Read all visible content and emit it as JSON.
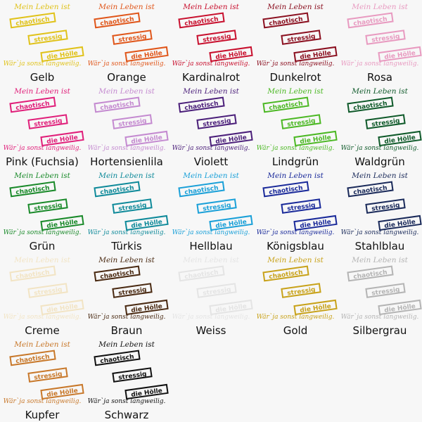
{
  "design": {
    "line1": "Mein Leben ist",
    "word1": "chaotisch",
    "word2": "stressig",
    "word3": "die Hölle",
    "tagline": "Wär`ja sonst langweilig."
  },
  "colors": [
    {
      "name": "Gelb",
      "hex": "#e0c21a"
    },
    {
      "name": "Orange",
      "hex": "#e0561a"
    },
    {
      "name": "Kardinalrot",
      "hex": "#c8102e"
    },
    {
      "name": "Dunkelrot",
      "hex": "#8b1020"
    },
    {
      "name": "Rosa",
      "hex": "#e89ac0"
    },
    {
      "name": "Pink (Fuchsia)",
      "hex": "#e01f7a"
    },
    {
      "name": "Hortensienlila",
      "hex": "#c48ad0"
    },
    {
      "name": "Violett",
      "hex": "#4b1f7a"
    },
    {
      "name": "Lindgrün",
      "hex": "#4cb824"
    },
    {
      "name": "Waldgrün",
      "hex": "#0f5a2a"
    },
    {
      "name": "Grün",
      "hex": "#1a8a2a"
    },
    {
      "name": "Türkis",
      "hex": "#0f8a9a"
    },
    {
      "name": "Hellblau",
      "hex": "#1aa0d8"
    },
    {
      "name": "Königsblau",
      "hex": "#1a2a9a"
    },
    {
      "name": "Stahlblau",
      "hex": "#1a2a5a"
    },
    {
      "name": "Creme",
      "hex": "#f2e4c4"
    },
    {
      "name": "Braun",
      "hex": "#4a2a12"
    },
    {
      "name": "Weiss",
      "hex": "#e4e4e4"
    },
    {
      "name": "Gold",
      "hex": "#c8a21a"
    },
    {
      "name": "Silbergrau",
      "hex": "#b4b4b4"
    },
    {
      "name": "Kupfer",
      "hex": "#c8782a"
    },
    {
      "name": "Schwarz",
      "hex": "#111111"
    }
  ]
}
